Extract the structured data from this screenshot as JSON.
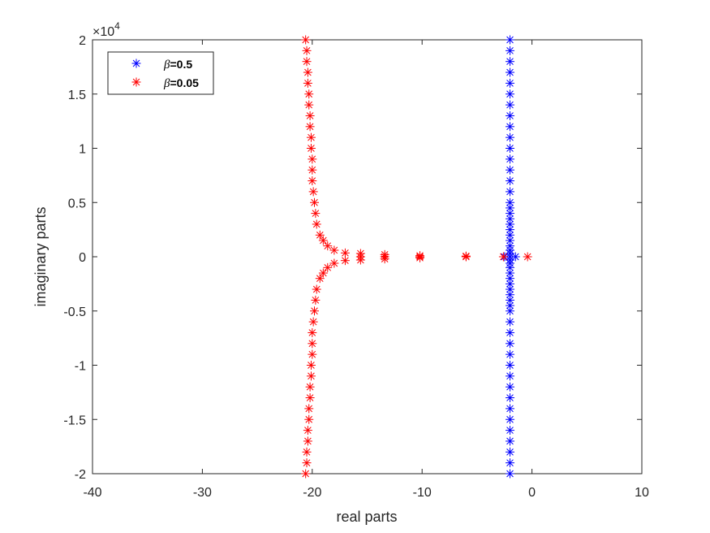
{
  "chart_data": {
    "type": "scatter",
    "title": "",
    "xlabel": "real parts",
    "ylabel": "imaginary parts",
    "xlim": [
      -40,
      10
    ],
    "ylim": [
      -20000,
      20000
    ],
    "x_ticks": [
      -40,
      -30,
      -20,
      -10,
      0,
      10
    ],
    "x_tick_labels": [
      "-40",
      "-30",
      "-20",
      "-10",
      "0",
      "10"
    ],
    "y_ticks": [
      -20000,
      -15000,
      -10000,
      -5000,
      0,
      5000,
      10000,
      15000,
      20000
    ],
    "y_tick_labels": [
      "-2",
      "-1.5",
      "-1",
      "-0.5",
      "0",
      "0.5",
      "1",
      "1.5",
      "2"
    ],
    "y_exponent_base": "×10",
    "y_exponent_power": "4",
    "grid": false,
    "legend_position": "top-left",
    "marker": "asterisk",
    "series": [
      {
        "name_symbol": "β",
        "name_value": "=0.5",
        "color": "#0000ff",
        "points": [
          [
            -2.0,
            20000
          ],
          [
            -2.0,
            19000
          ],
          [
            -2.0,
            18000
          ],
          [
            -2.0,
            17000
          ],
          [
            -2.0,
            16000
          ],
          [
            -2.0,
            15000
          ],
          [
            -2.0,
            14000
          ],
          [
            -2.0,
            13000
          ],
          [
            -2.0,
            12000
          ],
          [
            -2.0,
            11000
          ],
          [
            -2.0,
            10000
          ],
          [
            -2.0,
            9000
          ],
          [
            -2.0,
            8000
          ],
          [
            -2.0,
            7000
          ],
          [
            -2.0,
            6000
          ],
          [
            -2.0,
            5000
          ],
          [
            -2.0,
            4500
          ],
          [
            -2.0,
            4000
          ],
          [
            -2.0,
            3500
          ],
          [
            -2.0,
            3000
          ],
          [
            -2.0,
            2500
          ],
          [
            -2.0,
            2000
          ],
          [
            -2.0,
            1500
          ],
          [
            -2.0,
            1000
          ],
          [
            -2.0,
            600
          ],
          [
            -2.0,
            300
          ],
          [
            -1.5,
            0
          ],
          [
            -2.5,
            0
          ],
          [
            -2.0,
            0
          ],
          [
            -2.0,
            -300
          ],
          [
            -2.0,
            -600
          ],
          [
            -2.0,
            -1000
          ],
          [
            -2.0,
            -1500
          ],
          [
            -2.0,
            -2000
          ],
          [
            -2.0,
            -2500
          ],
          [
            -2.0,
            -3000
          ],
          [
            -2.0,
            -3500
          ],
          [
            -2.0,
            -4000
          ],
          [
            -2.0,
            -4500
          ],
          [
            -2.0,
            -5000
          ],
          [
            -2.0,
            -6000
          ],
          [
            -2.0,
            -7000
          ],
          [
            -2.0,
            -8000
          ],
          [
            -2.0,
            -9000
          ],
          [
            -2.0,
            -10000
          ],
          [
            -2.0,
            -11000
          ],
          [
            -2.0,
            -12000
          ],
          [
            -2.0,
            -13000
          ],
          [
            -2.0,
            -14000
          ],
          [
            -2.0,
            -15000
          ],
          [
            -2.0,
            -16000
          ],
          [
            -2.0,
            -17000
          ],
          [
            -2.0,
            -18000
          ],
          [
            -2.0,
            -19000
          ],
          [
            -2.0,
            -20000
          ]
        ]
      },
      {
        "name_symbol": "β",
        "name_value": "=0.05",
        "color": "#ff0000",
        "points": [
          [
            -20.6,
            20000
          ],
          [
            -20.5,
            19000
          ],
          [
            -20.5,
            18000
          ],
          [
            -20.4,
            17000
          ],
          [
            -20.4,
            16000
          ],
          [
            -20.3,
            15000
          ],
          [
            -20.3,
            14000
          ],
          [
            -20.2,
            13000
          ],
          [
            -20.2,
            12000
          ],
          [
            -20.1,
            11000
          ],
          [
            -20.1,
            10000
          ],
          [
            -20.0,
            9000
          ],
          [
            -20.0,
            8000
          ],
          [
            -20.0,
            7000
          ],
          [
            -19.9,
            6000
          ],
          [
            -19.8,
            5000
          ],
          [
            -19.7,
            4000
          ],
          [
            -19.6,
            3000
          ],
          [
            -19.3,
            2000
          ],
          [
            -19.0,
            1500
          ],
          [
            -18.6,
            1000
          ],
          [
            -18.0,
            600
          ],
          [
            -17.0,
            350
          ],
          [
            -17.0,
            -350
          ],
          [
            -18.0,
            -600
          ],
          [
            -18.6,
            -1000
          ],
          [
            -19.0,
            -1500
          ],
          [
            -19.3,
            -2000
          ],
          [
            -19.6,
            -3000
          ],
          [
            -19.7,
            -4000
          ],
          [
            -19.8,
            -5000
          ],
          [
            -19.9,
            -6000
          ],
          [
            -20.0,
            -7000
          ],
          [
            -20.0,
            -8000
          ],
          [
            -20.0,
            -9000
          ],
          [
            -20.1,
            -10000
          ],
          [
            -20.1,
            -11000
          ],
          [
            -20.2,
            -12000
          ],
          [
            -20.2,
            -13000
          ],
          [
            -20.3,
            -14000
          ],
          [
            -20.3,
            -15000
          ],
          [
            -20.4,
            -16000
          ],
          [
            -20.4,
            -17000
          ],
          [
            -20.5,
            -18000
          ],
          [
            -20.5,
            -19000
          ],
          [
            -20.6,
            -20000
          ],
          [
            -15.6,
            300
          ],
          [
            -15.6,
            0
          ],
          [
            -15.6,
            -300
          ],
          [
            -13.4,
            200
          ],
          [
            -13.4,
            0
          ],
          [
            -13.4,
            -200
          ],
          [
            -10.2,
            100
          ],
          [
            -10.2,
            0
          ],
          [
            -10.2,
            -100
          ],
          [
            -6.0,
            0
          ],
          [
            -6.0,
            60
          ],
          [
            -2.6,
            0
          ],
          [
            -0.4,
            0
          ]
        ]
      }
    ]
  }
}
